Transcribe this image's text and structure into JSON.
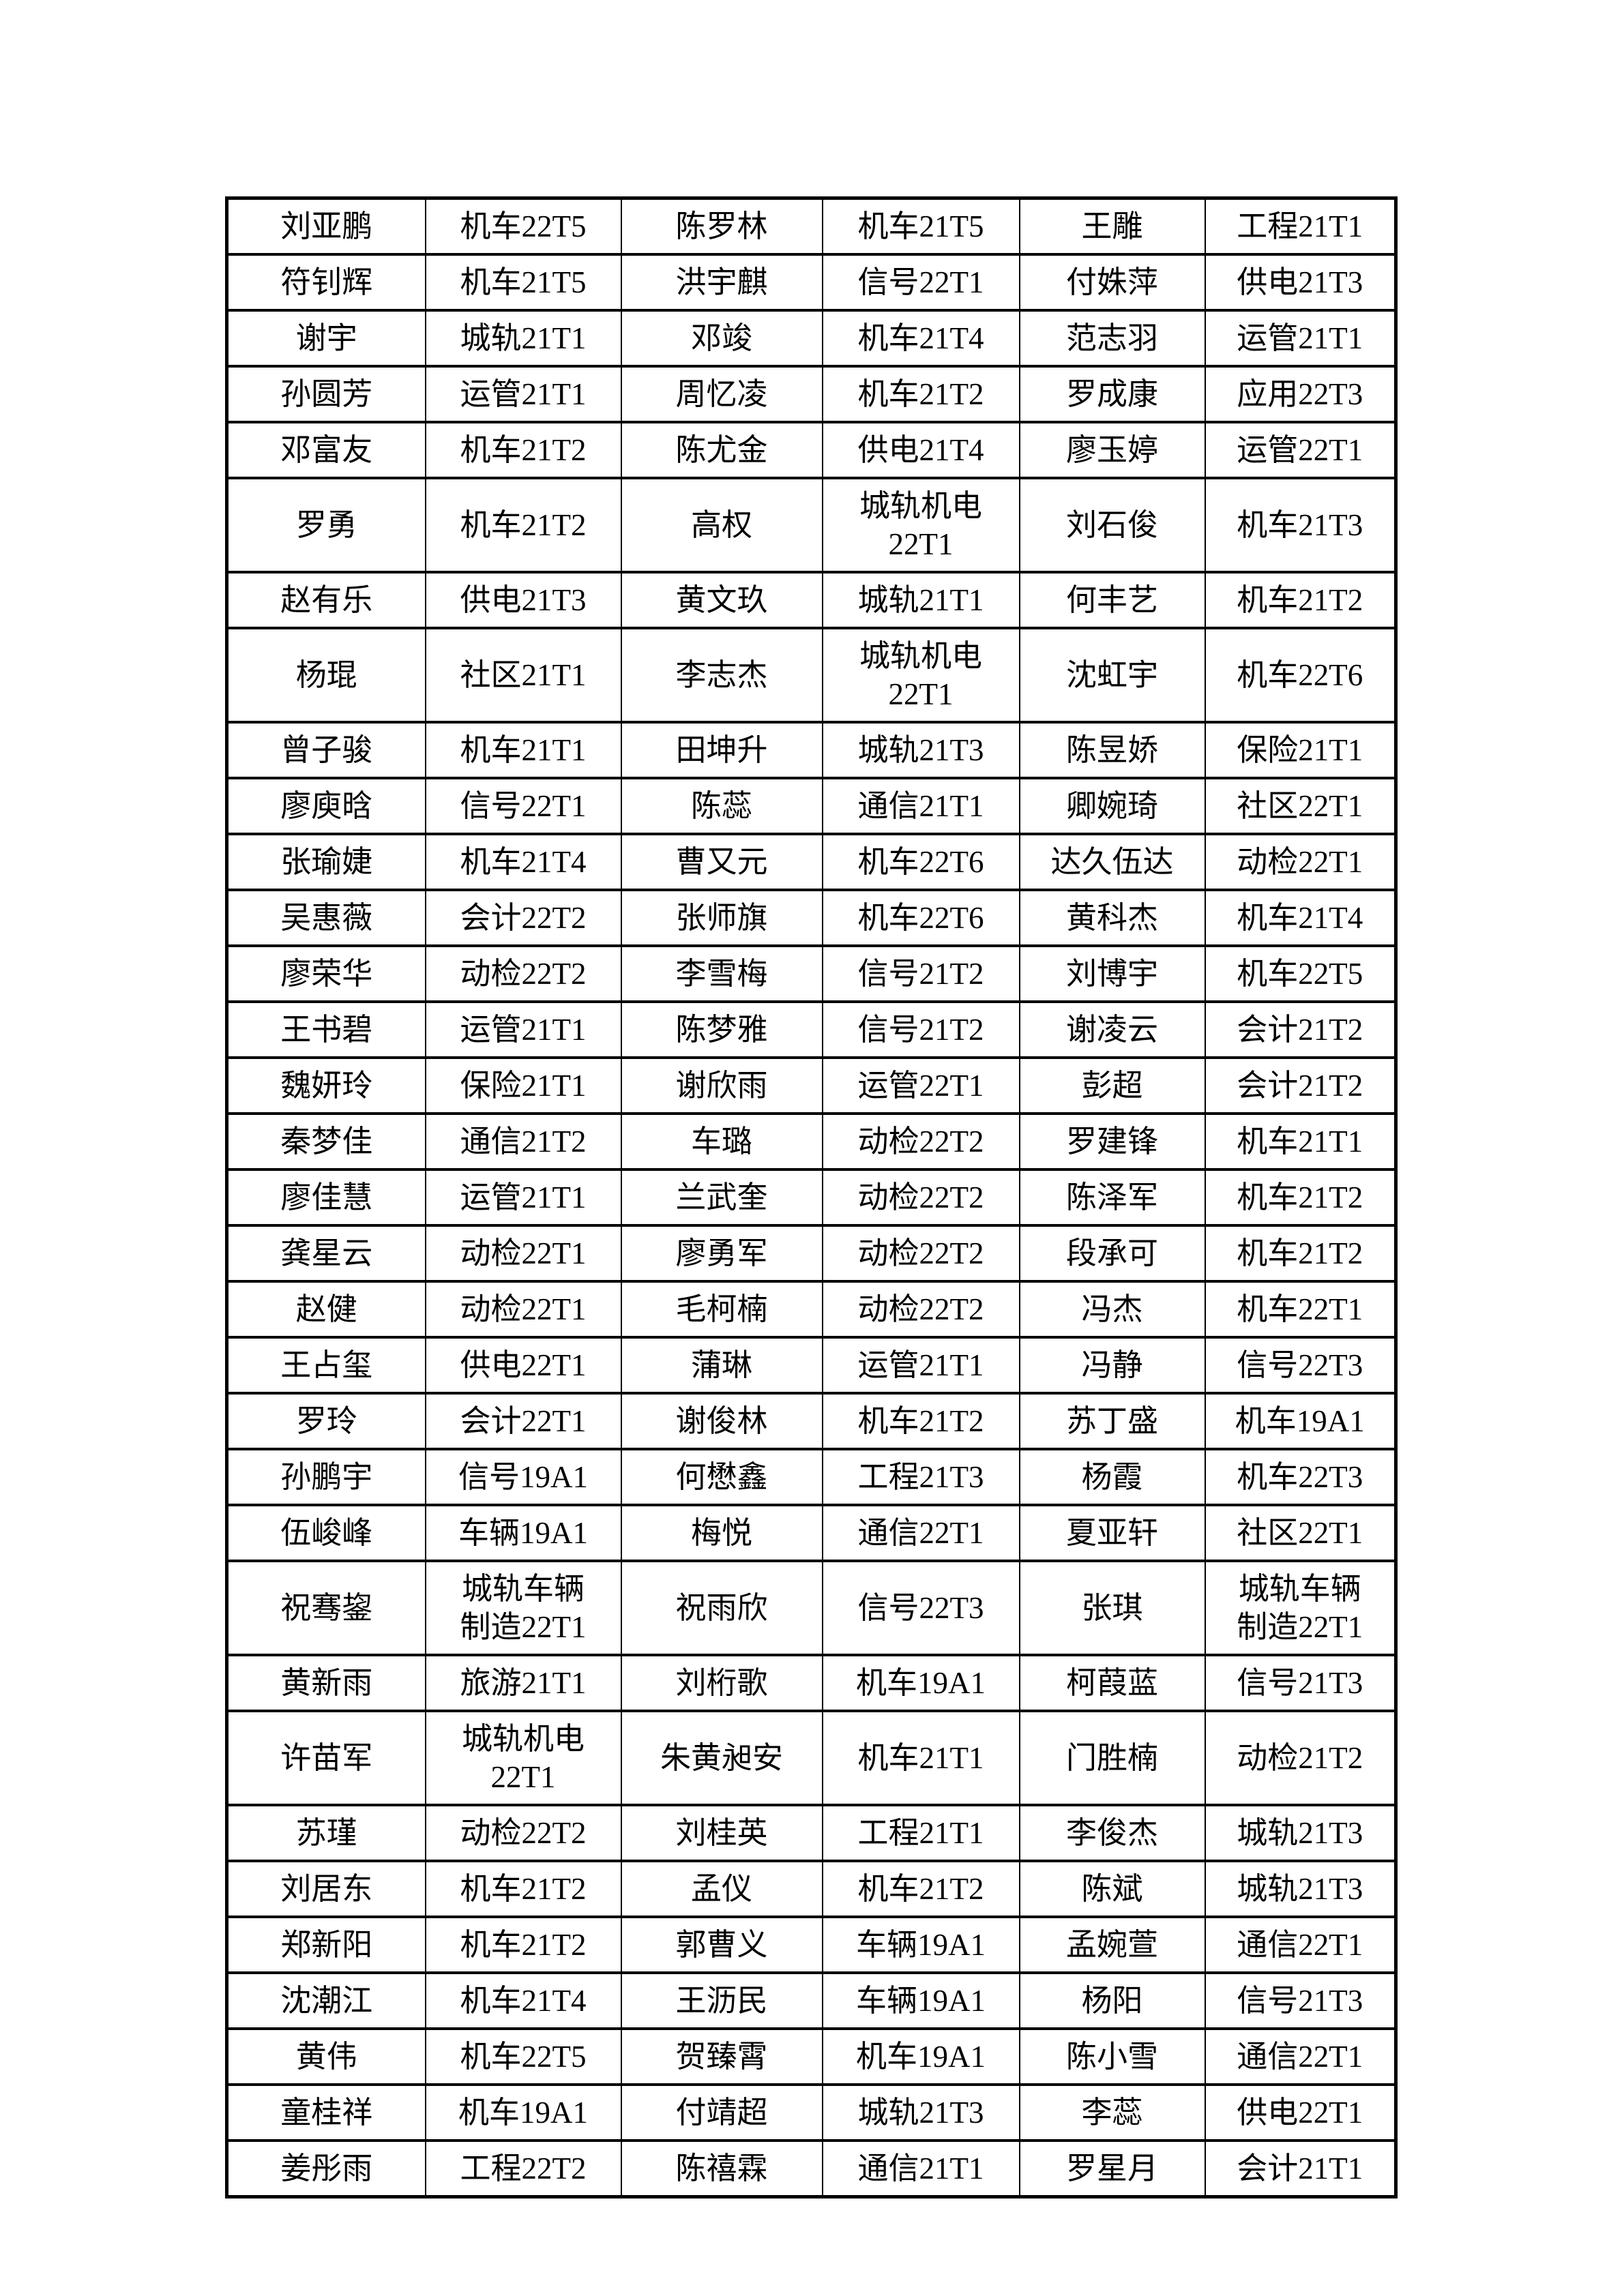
{
  "document": {
    "type": "student-class-roster",
    "background_color": "#ffffff",
    "text_color": "#000000",
    "border_color": "#000000"
  },
  "table": {
    "columns": 6,
    "column_roles": [
      "student-name",
      "class-code",
      "student-name",
      "class-code",
      "student-name",
      "class-code"
    ],
    "rows": [
      [
        "刘亚鹏",
        "机车22T5",
        "陈罗林",
        "机车21T5",
        "王雕",
        "工程21T1"
      ],
      [
        "符钊辉",
        "机车21T5",
        "洪宇麒",
        "信号22T1",
        "付姝萍",
        "供电21T3"
      ],
      [
        "谢宇",
        "城轨21T1",
        "邓竣",
        "机车21T4",
        "范志羽",
        "运管21T1"
      ],
      [
        "孙圆芳",
        "运管21T1",
        "周忆凌",
        "机车21T2",
        "罗成康",
        "应用22T3"
      ],
      [
        "邓富友",
        "机车21T2",
        "陈尤金",
        "供电21T4",
        "廖玉婷",
        "运管22T1"
      ],
      [
        "罗勇",
        "机车21T2",
        "高权",
        "城轨机电\n22T1",
        "刘石俊",
        "机车21T3"
      ],
      [
        "赵有乐",
        "供电21T3",
        "黄文玖",
        "城轨21T1",
        "何丰艺",
        "机车21T2"
      ],
      [
        "杨琨",
        "社区21T1",
        "李志杰",
        "城轨机电\n22T1",
        "沈虹宇",
        "机车22T6"
      ],
      [
        "曾子骏",
        "机车21T1",
        "田坤升",
        "城轨21T3",
        "陈昱娇",
        "保险21T1"
      ],
      [
        "廖庾晗",
        "信号22T1",
        "陈蕊",
        "通信21T1",
        "卿婉琦",
        "社区22T1"
      ],
      [
        "张瑜婕",
        "机车21T4",
        "曹又元",
        "机车22T6",
        "达久伍达",
        "动检22T1"
      ],
      [
        "吴惠薇",
        "会计22T2",
        "张师旗",
        "机车22T6",
        "黄科杰",
        "机车21T4"
      ],
      [
        "廖荣华",
        "动检22T2",
        "李雪梅",
        "信号21T2",
        "刘博宇",
        "机车22T5"
      ],
      [
        "王书碧",
        "运管21T1",
        "陈梦雅",
        "信号21T2",
        "谢凌云",
        "会计21T2"
      ],
      [
        "魏妍玲",
        "保险21T1",
        "谢欣雨",
        "运管22T1",
        "彭超",
        "会计21T2"
      ],
      [
        "秦梦佳",
        "通信21T2",
        "车璐",
        "动检22T2",
        "罗建锋",
        "机车21T1"
      ],
      [
        "廖佳慧",
        "运管21T1",
        "兰武奎",
        "动检22T2",
        "陈泽军",
        "机车21T2"
      ],
      [
        "龚星云",
        "动检22T1",
        "廖勇军",
        "动检22T2",
        "段承可",
        "机车21T2"
      ],
      [
        "赵健",
        "动检22T1",
        "毛柯楠",
        "动检22T2",
        "冯杰",
        "机车22T1"
      ],
      [
        "王占玺",
        "供电22T1",
        "蒲琳",
        "运管21T1",
        "冯静",
        "信号22T3"
      ],
      [
        "罗玲",
        "会计22T1",
        "谢俊林",
        "机车21T2",
        "苏丁盛",
        "机车19A1"
      ],
      [
        "孙鹏宇",
        "信号19A1",
        "何懋鑫",
        "工程21T3",
        "杨霞",
        "机车22T3"
      ],
      [
        "伍峻峰",
        "车辆19A1",
        "梅悦",
        "通信22T1",
        "夏亚轩",
        "社区22T1"
      ],
      [
        "祝骞鋆",
        "城轨车辆\n制造22T1",
        "祝雨欣",
        "信号22T3",
        "张琪",
        "城轨车辆\n制造22T1"
      ],
      [
        "黄新雨",
        "旅游21T1",
        "刘桁歌",
        "机车19A1",
        "柯葭蓝",
        "信号21T3"
      ],
      [
        "许苗军",
        "城轨机电\n22T1",
        "朱黄昶安",
        "机车21T1",
        "门胜楠",
        "动检21T2"
      ],
      [
        "苏瑾",
        "动检22T2",
        "刘桂英",
        "工程21T1",
        "李俊杰",
        "城轨21T3"
      ],
      [
        "刘居东",
        "机车21T2",
        "孟仪",
        "机车21T2",
        "陈斌",
        "城轨21T3"
      ],
      [
        "郑新阳",
        "机车21T2",
        "郭曹义",
        "车辆19A1",
        "孟婉萱",
        "通信22T1"
      ],
      [
        "沈潮江",
        "机车21T4",
        "王沥民",
        "车辆19A1",
        "杨阳",
        "信号21T3"
      ],
      [
        "黄伟",
        "机车22T5",
        "贺臻霄",
        "机车19A1",
        "陈小雪",
        "通信22T1"
      ],
      [
        "童桂祥",
        "机车19A1",
        "付靖超",
        "城轨21T3",
        "李蕊",
        "供电22T1"
      ],
      [
        "姜彤雨",
        "工程22T2",
        "陈禧霖",
        "通信21T1",
        "罗星月",
        "会计21T1"
      ]
    ]
  }
}
